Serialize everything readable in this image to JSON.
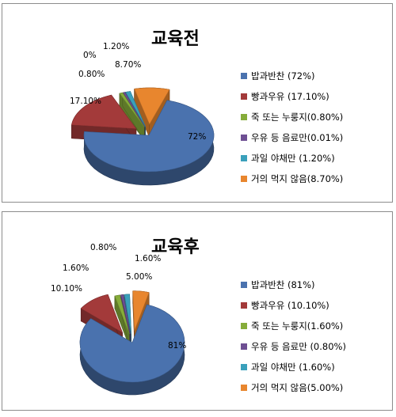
{
  "chart_data": [
    {
      "type": "pie",
      "title": "교육전",
      "categories": [
        "밥과반찬",
        "빵과우유",
        "죽 또는 누룽지",
        "우유 등 음료만",
        "과일 야채만",
        "거의 먹지 않음"
      ],
      "values": [
        72,
        17.1,
        0.8,
        0.01,
        1.2,
        8.7
      ],
      "data_labels": [
        "72%",
        "17.10%",
        "0.80%",
        "0%",
        "1.20%",
        "8.70%"
      ],
      "legend": [
        "밥과반찬 (72%)",
        "빵과우유 (17.10%)",
        "죽 또는 누룽지(0.80%)",
        "우유 등 음료만(0.01%)",
        "과일 야채만 (1.20%)",
        "거의 먹지 않음(8.70%)"
      ],
      "legend_position": "right",
      "colors": [
        "#4a72ae",
        "#a33a3a",
        "#86ac3a",
        "#6e4f93",
        "#3aa0bb",
        "#e8862e"
      ]
    },
    {
      "type": "pie",
      "title": "교육후",
      "categories": [
        "밥과반찬",
        "빵과우유",
        "죽 또는 누룽지",
        "우유 등 음료만",
        "과일 야채만",
        "거의 먹지 않음"
      ],
      "values": [
        81,
        10.1,
        1.6,
        0.8,
        1.6,
        5.0
      ],
      "data_labels": [
        "81%",
        "10.10%",
        "1.60%",
        "0.80%",
        "1.60%",
        "5.00%"
      ],
      "legend": [
        "밥과반찬 (81%)",
        "빵과우유 (10.10%)",
        "죽 또는 누룽지(1.60%)",
        "우유 등 음료만 (0.80%)",
        "과일 야채만 (1.60%)",
        "거의 먹지 않음(5.00%)"
      ],
      "legend_position": "right",
      "colors": [
        "#4a72ae",
        "#a33a3a",
        "#86ac3a",
        "#6e4f93",
        "#3aa0bb",
        "#e8862e"
      ]
    }
  ]
}
